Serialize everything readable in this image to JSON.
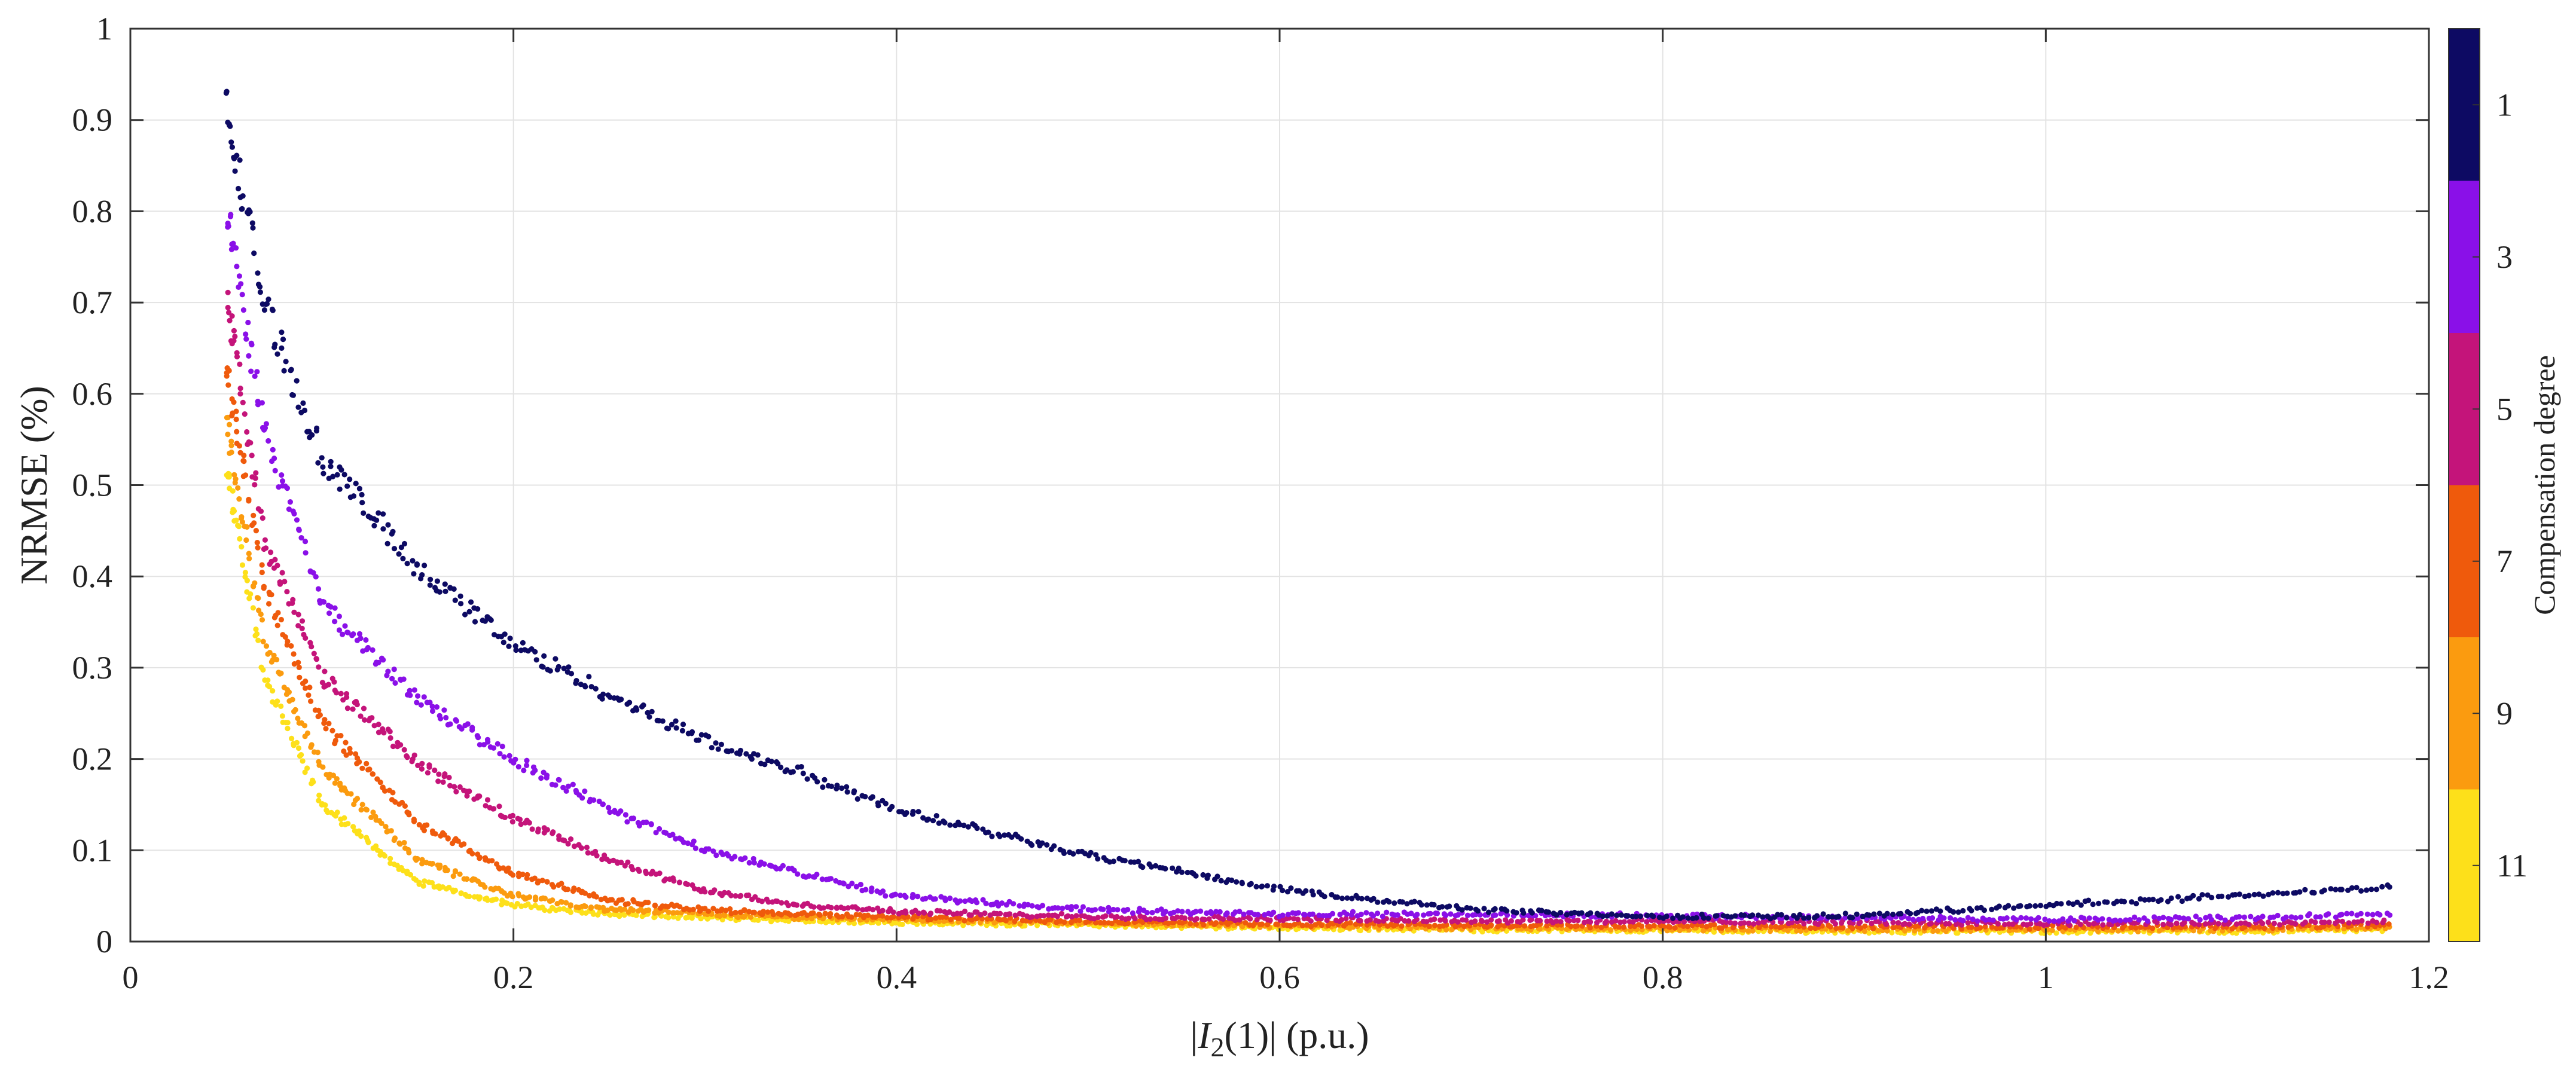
{
  "chart_data": {
    "type": "scatter",
    "title": "",
    "xlabel": {
      "pipe_left": "|",
      "italic": "I",
      "subscript": "2",
      "rest": "(1)| (p.u.)"
    },
    "ylabel": "NRMSE (%)",
    "xlim": [
      0,
      1.2
    ],
    "ylim": [
      0,
      1
    ],
    "x_ticks": [
      0,
      0.2,
      0.4,
      0.6,
      0.8,
      1,
      1.2
    ],
    "x_tick_labels": [
      "0",
      "0.2",
      "0.4",
      "0.6",
      "0.8",
      "1",
      "1.2"
    ],
    "y_ticks": [
      0,
      0.1,
      0.2,
      0.3,
      0.4,
      0.5,
      0.6,
      0.7,
      0.8,
      0.9,
      1
    ],
    "y_tick_labels": [
      "0",
      "0.1",
      "0.2",
      "0.3",
      "0.4",
      "0.5",
      "0.6",
      "0.7",
      "0.8",
      "0.9",
      "1"
    ],
    "grid": true,
    "colorbar": {
      "title": "Compensation degree",
      "labels": [
        "1",
        "3",
        "5",
        "7",
        "9",
        "11"
      ],
      "colors": [
        "#0d0a63",
        "#8a10e8",
        "#c4147a",
        "#ef5a0c",
        "#fb9b0f",
        "#fde01a"
      ]
    },
    "x_range": [
      0.05,
      1.18
    ],
    "series": [
      {
        "degree": 1,
        "color": "#0d0a63",
        "x": [
          0.05,
          0.07,
          0.1,
          0.15,
          0.2,
          0.25,
          0.3,
          0.35,
          0.4,
          0.5,
          0.6,
          0.7,
          0.8,
          0.9,
          1.0,
          1.1,
          1.18
        ],
        "y": [
          0.91,
          0.7,
          0.53,
          0.41,
          0.325,
          0.27,
          0.22,
          0.185,
          0.145,
          0.095,
          0.057,
          0.035,
          0.027,
          0.028,
          0.04,
          0.05,
          0.06
        ]
      },
      {
        "degree": 3,
        "color": "#8a10e8",
        "x": [
          0.05,
          0.07,
          0.1,
          0.15,
          0.2,
          0.25,
          0.3,
          0.35,
          0.4,
          0.5,
          0.6,
          0.7,
          0.8,
          0.9,
          1.0,
          1.1,
          1.18
        ],
        "y": [
          0.8,
          0.56,
          0.37,
          0.265,
          0.2,
          0.145,
          0.1,
          0.075,
          0.05,
          0.035,
          0.03,
          0.03,
          0.028,
          0.026,
          0.024,
          0.026,
          0.03
        ]
      },
      {
        "degree": 5,
        "color": "#c4147a",
        "x": [
          0.05,
          0.07,
          0.1,
          0.15,
          0.2,
          0.25,
          0.3,
          0.35,
          0.4,
          0.5,
          0.6,
          0.7,
          0.8,
          0.9,
          1.0,
          1.1,
          1.18
        ],
        "y": [
          0.71,
          0.44,
          0.29,
          0.195,
          0.135,
          0.09,
          0.055,
          0.04,
          0.033,
          0.027,
          0.025,
          0.023,
          0.022,
          0.021,
          0.02,
          0.02,
          0.022
        ]
      },
      {
        "degree": 7,
        "color": "#ef5a0c",
        "x": [
          0.05,
          0.07,
          0.1,
          0.15,
          0.2,
          0.25,
          0.3,
          0.35,
          0.4,
          0.5,
          0.6,
          0.7,
          0.8,
          0.9,
          1.0,
          1.1,
          1.18
        ],
        "y": [
          0.63,
          0.39,
          0.24,
          0.13,
          0.075,
          0.045,
          0.035,
          0.03,
          0.027,
          0.022,
          0.019,
          0.018,
          0.017,
          0.016,
          0.016,
          0.016,
          0.018
        ]
      },
      {
        "degree": 9,
        "color": "#fb9b0f",
        "x": [
          0.05,
          0.07,
          0.1,
          0.15,
          0.2,
          0.25,
          0.3,
          0.35,
          0.4,
          0.5,
          0.6,
          0.7,
          0.8,
          0.9,
          1.0,
          1.1,
          1.18
        ],
        "y": [
          0.57,
          0.33,
          0.19,
          0.09,
          0.05,
          0.035,
          0.03,
          0.026,
          0.024,
          0.02,
          0.017,
          0.015,
          0.014,
          0.013,
          0.013,
          0.013,
          0.015
        ]
      },
      {
        "degree": 11,
        "color": "#fde01a",
        "x": [
          0.05,
          0.07,
          0.1,
          0.15,
          0.2,
          0.25,
          0.3,
          0.35,
          0.4,
          0.5,
          0.6,
          0.7,
          0.8,
          0.9,
          1.0,
          1.1,
          1.18
        ],
        "y": [
          0.52,
          0.29,
          0.15,
          0.065,
          0.04,
          0.03,
          0.026,
          0.023,
          0.021,
          0.018,
          0.015,
          0.013,
          0.012,
          0.011,
          0.011,
          0.011,
          0.013
        ]
      }
    ]
  }
}
